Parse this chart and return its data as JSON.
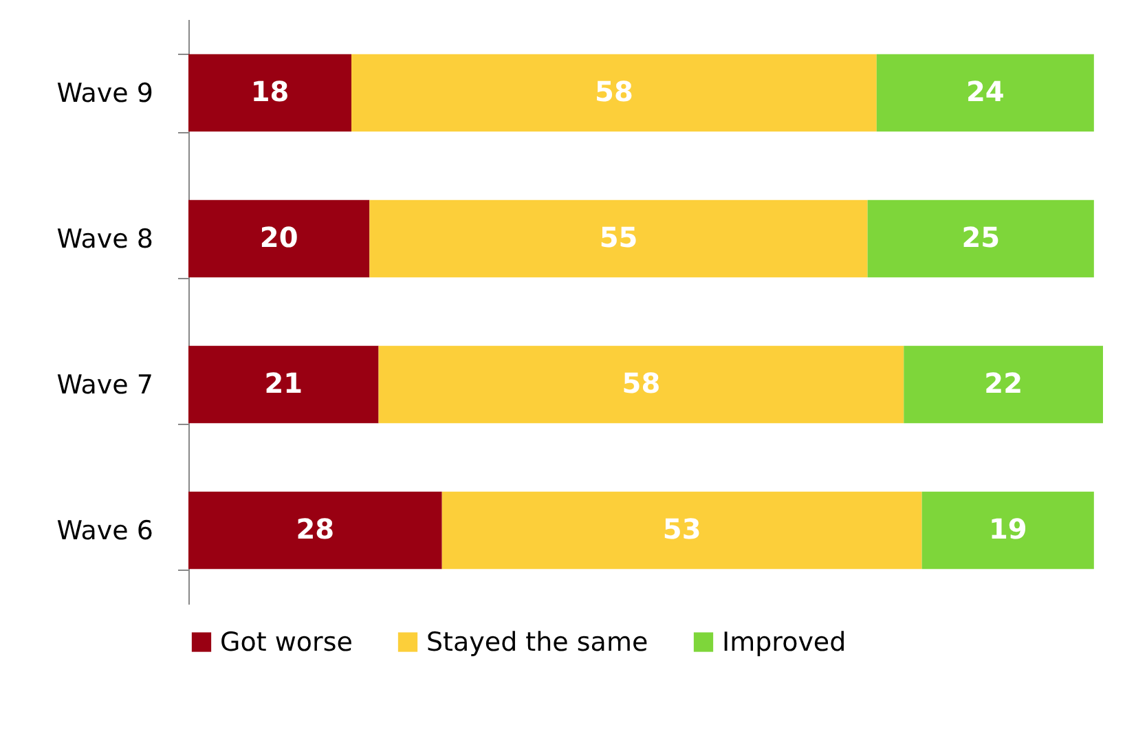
{
  "chart_data": {
    "type": "bar",
    "orientation": "horizontal",
    "stacked": true,
    "data_labels": true,
    "legend": "bottom",
    "grid": false,
    "categories": [
      "Wave 9",
      "Wave 8",
      "Wave 7",
      "Wave 6"
    ],
    "series": [
      {
        "name": "Got worse",
        "color": "#990012",
        "values": [
          18,
          20,
          21,
          28
        ]
      },
      {
        "name": "Stayed the same",
        "color": "#fccf3a",
        "values": [
          58,
          55,
          58,
          53
        ]
      },
      {
        "name": "Improved",
        "color": "#7ed63a",
        "values": [
          24,
          25,
          22,
          19
        ]
      }
    ]
  }
}
